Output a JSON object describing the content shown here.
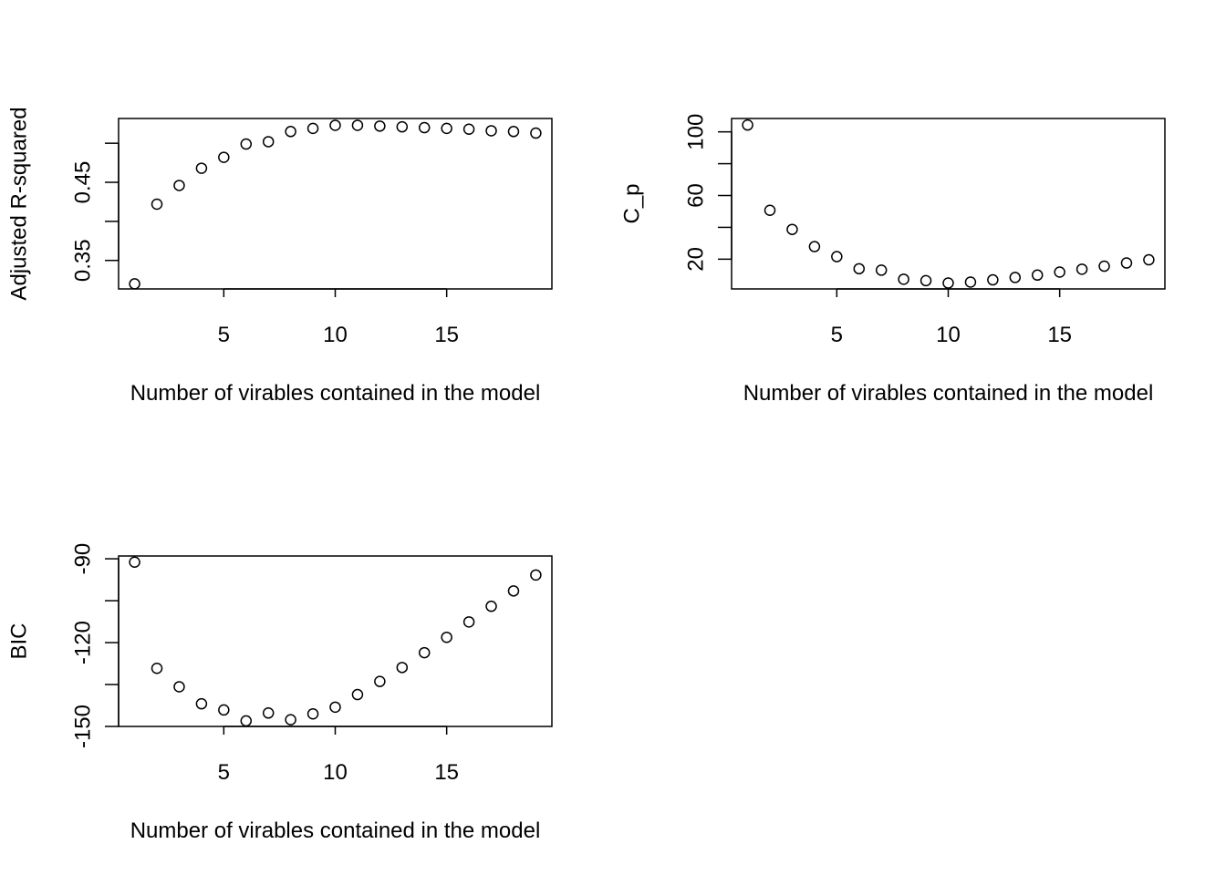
{
  "chart_data": [
    {
      "type": "scatter",
      "xlabel": "Number of virables contained in the model",
      "ylabel": "Adjusted R-squared",
      "xticks": [
        "5",
        "10",
        "15"
      ],
      "xtick_values": [
        5,
        10,
        15
      ],
      "yticks": [
        "0.35",
        "0.45"
      ],
      "ytick_values": [
        0.35,
        0.45
      ],
      "yminor_tick_values": [
        0.35,
        0.4,
        0.45,
        0.5
      ],
      "xlim": [
        0.28,
        19.72
      ],
      "ylim": [
        0.3135,
        0.5317
      ],
      "series": [
        {
          "x": [
            1,
            2,
            3,
            4,
            5,
            6,
            7,
            8,
            9,
            10,
            11,
            12,
            13,
            14,
            15,
            16,
            17,
            18,
            19
          ],
          "y": [
            0.32,
            0.422,
            0.446,
            0.468,
            0.482,
            0.499,
            0.502,
            0.515,
            0.519,
            0.523,
            0.523,
            0.522,
            0.521,
            0.52,
            0.519,
            0.518,
            0.516,
            0.515,
            0.513
          ]
        }
      ]
    },
    {
      "type": "scatter",
      "xlabel": "Number of virables contained in the model",
      "ylabel": "C_p",
      "xticks": [
        "5",
        "10",
        "15"
      ],
      "xtick_values": [
        5,
        10,
        15
      ],
      "yticks": [
        "20",
        "60",
        "100"
      ],
      "ytick_values": [
        20,
        60,
        100
      ],
      "yminor_tick_values": [
        20,
        40,
        60,
        80,
        100
      ],
      "xlim": [
        0.28,
        19.72
      ],
      "ylim": [
        1.3,
        108.4
      ],
      "series": [
        {
          "x": [
            1,
            2,
            3,
            4,
            5,
            6,
            7,
            8,
            9,
            10,
            11,
            12,
            13,
            14,
            15,
            16,
            17,
            18,
            19
          ],
          "y": [
            104.3,
            50.7,
            38.7,
            27.9,
            21.6,
            14.0,
            13.1,
            7.4,
            6.5,
            5.0,
            5.6,
            7.0,
            8.5,
            10.0,
            11.9,
            13.7,
            15.6,
            17.6,
            19.6
          ]
        }
      ]
    },
    {
      "type": "scatter",
      "xlabel": "Number of virables contained in the model",
      "ylabel": "BIC",
      "xticks": [
        "5",
        "10",
        "15"
      ],
      "xtick_values": [
        5,
        10,
        15
      ],
      "yticks": [
        "-90",
        "-120",
        "-150"
      ],
      "ytick_values": [
        -90,
        -120,
        -150
      ],
      "yminor_tick_values": [
        -90,
        -105,
        -120,
        -135,
        -150
      ],
      "xlim": [
        0.28,
        19.72
      ],
      "ylim": [
        -150.0,
        -89.0
      ],
      "series": [
        {
          "x": [
            1,
            2,
            3,
            4,
            5,
            6,
            7,
            8,
            9,
            10,
            11,
            12,
            13,
            14,
            15,
            16,
            17,
            18,
            19
          ],
          "y": [
            -91.2,
            -129.2,
            -135.8,
            -141.9,
            -144.1,
            -148.0,
            -145.2,
            -147.6,
            -145.5,
            -143.1,
            -138.6,
            -133.9,
            -128.9,
            -123.6,
            -118.1,
            -112.6,
            -107.0,
            -101.5,
            -95.8
          ]
        }
      ]
    }
  ]
}
